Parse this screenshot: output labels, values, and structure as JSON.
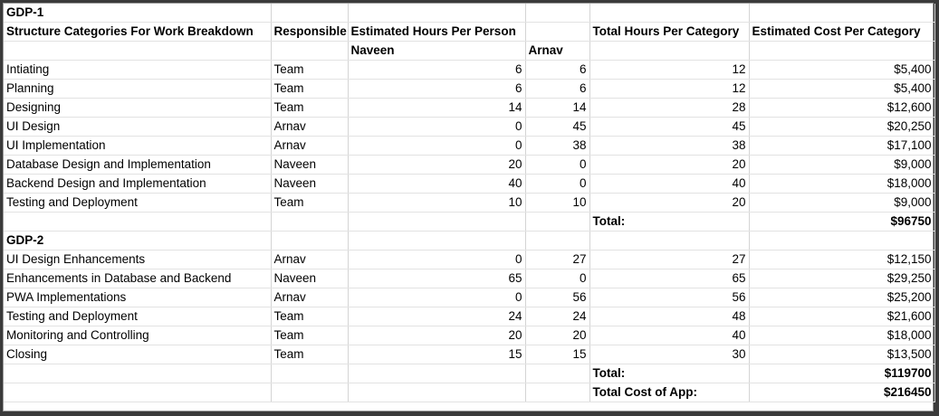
{
  "sections": [
    {
      "title": "GDP-1",
      "headers": {
        "category": "Structure Categories For Work Breakdown",
        "responsible": "Responsible",
        "hours_per_person": "Estimated Hours Per Person",
        "total_hours": "Total Hours Per Category",
        "cost": "Estimated Cost Per Category"
      },
      "persons": [
        "Naveen",
        "Arnav"
      ],
      "rows": [
        {
          "category": "Intiating",
          "responsible": "Team",
          "naveen": "6",
          "arnav": "6",
          "total_hours": "12",
          "cost": "$5,400"
        },
        {
          "category": "Planning",
          "responsible": "Team",
          "naveen": "6",
          "arnav": "6",
          "total_hours": "12",
          "cost": "$5,400"
        },
        {
          "category": "Designing",
          "responsible": "Team",
          "naveen": "14",
          "arnav": "14",
          "total_hours": "28",
          "cost": "$12,600"
        },
        {
          "category": "UI Design",
          "responsible": "Arnav",
          "naveen": "0",
          "arnav": "45",
          "total_hours": "45",
          "cost": "$20,250"
        },
        {
          "category": "UI Implementation",
          "responsible": "Arnav",
          "naveen": "0",
          "arnav": "38",
          "total_hours": "38",
          "cost": "$17,100"
        },
        {
          "category": "Database Design and Implementation",
          "responsible": "Naveen",
          "naveen": "20",
          "arnav": "0",
          "total_hours": "20",
          "cost": "$9,000"
        },
        {
          "category": "Backend Design and Implementation",
          "responsible": "Naveen",
          "naveen": "40",
          "arnav": "0",
          "total_hours": "40",
          "cost": "$18,000"
        },
        {
          "category": "Testing and Deployment",
          "responsible": "Team",
          "naveen": "10",
          "arnav": "10",
          "total_hours": "20",
          "cost": "$9,000"
        }
      ],
      "total_label": "Total:",
      "total_value": "$96750"
    },
    {
      "title": "GDP-2",
      "rows": [
        {
          "category": "UI Design Enhancements",
          "responsible": "Arnav",
          "naveen": "0",
          "arnav": "27",
          "total_hours": "27",
          "cost": "$12,150"
        },
        {
          "category": "Enhancements in Database and Backend",
          "responsible": "Naveen",
          "naveen": "65",
          "arnav": "0",
          "total_hours": "65",
          "cost": "$29,250"
        },
        {
          "category": "PWA Implementations",
          "responsible": "Arnav",
          "naveen": "0",
          "arnav": "56",
          "total_hours": "56",
          "cost": "$25,200"
        },
        {
          "category": "Testing and Deployment",
          "responsible": "Team",
          "naveen": "24",
          "arnav": "24",
          "total_hours": "48",
          "cost": "$21,600"
        },
        {
          "category": "Monitoring and Controlling",
          "responsible": "Team",
          "naveen": "20",
          "arnav": "20",
          "total_hours": "40",
          "cost": "$18,000"
        },
        {
          "category": "Closing",
          "responsible": "Team",
          "naveen": "15",
          "arnav": "15",
          "total_hours": "30",
          "cost": "$13,500"
        }
      ],
      "total_label": "Total:",
      "total_value": "$119700"
    }
  ],
  "grand_total": {
    "label": "Total Cost of App:",
    "value": "$216450"
  }
}
